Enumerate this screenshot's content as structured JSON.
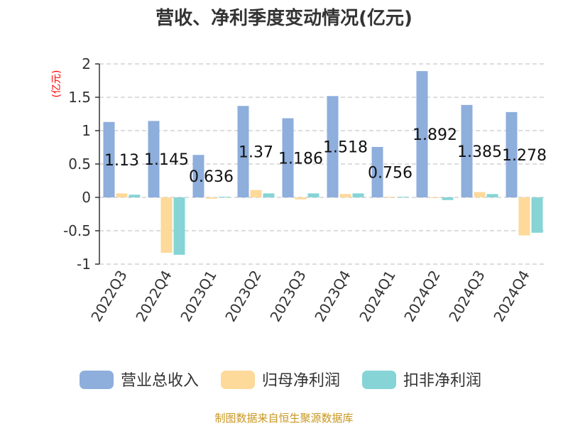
{
  "chart_data": {
    "type": "bar",
    "title": "营收、净利季度变动情况(亿元)",
    "ylabel": "(亿元)",
    "ylim": [
      -1,
      2
    ],
    "yticks": [
      2,
      1.5,
      1,
      0.5,
      0,
      -0.5,
      -1
    ],
    "ytick_labels": [
      "2",
      "1.5",
      "1",
      "0.5",
      "0",
      "-0.5",
      "-1"
    ],
    "grid": true,
    "legend_position": "bottom",
    "categories": [
      "2022Q3",
      "2022Q4",
      "2023Q1",
      "2023Q2",
      "2023Q3",
      "2023Q4",
      "2024Q1",
      "2024Q2",
      "2024Q3",
      "2024Q4"
    ],
    "series": [
      {
        "name": "营业总收入",
        "color": "#8eaedc",
        "values": [
          1.13,
          1.145,
          0.636,
          1.37,
          1.186,
          1.518,
          0.756,
          1.892,
          1.385,
          1.278
        ],
        "labels": [
          "1.13",
          "1.145",
          "0.636",
          "1.37",
          "1.186",
          "1.518",
          "0.756",
          "1.892",
          "1.385",
          "1.278"
        ]
      },
      {
        "name": "归母净利润",
        "color": "#fdd99a",
        "values": [
          0.06,
          -0.83,
          -0.02,
          0.11,
          -0.03,
          0.05,
          0.01,
          -0.01,
          0.08,
          -0.57
        ]
      },
      {
        "name": "扣非净利润",
        "color": "#86d4d6",
        "values": [
          0.04,
          -0.86,
          0.01,
          0.06,
          0.06,
          0.06,
          0.01,
          -0.04,
          0.05,
          -0.53
        ]
      }
    ]
  },
  "source": "制图数据来自恒生聚源数据库"
}
